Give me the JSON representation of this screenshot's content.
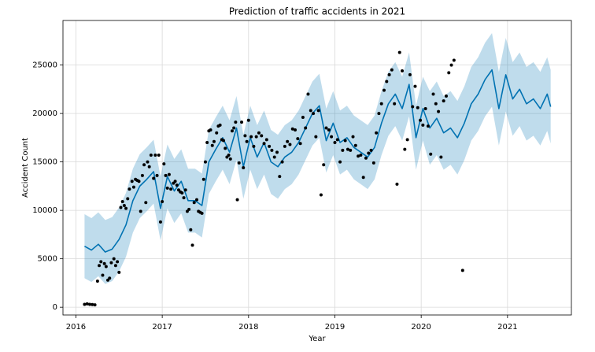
{
  "chart_data": {
    "type": "forecast",
    "title": "Prediction of traffic accidents in 2021",
    "x_label": "Year",
    "y_label": "Accident Count",
    "xlim": [
      2015.85,
      2021.74
    ],
    "ylim": [
      -800,
      29600
    ],
    "xticks": [
      2016,
      2017,
      2018,
      2019,
      2020,
      2021
    ],
    "yticks": [
      0,
      5000,
      10000,
      15000,
      20000,
      25000
    ],
    "grid": true,
    "points": {
      "color": "#000000",
      "x": [
        2016.1,
        2016.13,
        2016.16,
        2016.19,
        2016.22,
        2016.25,
        2016.27,
        2016.29,
        2016.31,
        2016.33,
        2016.35,
        2016.37,
        2016.39,
        2016.41,
        2016.44,
        2016.46,
        2016.48,
        2016.5,
        2016.52,
        2016.54,
        2016.56,
        2016.58,
        2016.6,
        2016.62,
        2016.65,
        2016.67,
        2016.69,
        2016.71,
        2016.73,
        2016.75,
        2016.77,
        2016.79,
        2016.81,
        2016.83,
        2016.85,
        2016.87,
        2016.9,
        2016.92,
        2016.94,
        2016.96,
        2016.98,
        2017.0,
        2017.02,
        2017.04,
        2017.06,
        2017.08,
        2017.1,
        2017.13,
        2017.15,
        2017.17,
        2017.19,
        2017.21,
        2017.23,
        2017.25,
        2017.27,
        2017.29,
        2017.31,
        2017.33,
        2017.35,
        2017.37,
        2017.4,
        2017.42,
        2017.44,
        2017.46,
        2017.48,
        2017.5,
        2017.52,
        2017.54,
        2017.56,
        2017.58,
        2017.6,
        2017.63,
        2017.65,
        2017.67,
        2017.69,
        2017.71,
        2017.73,
        2017.75,
        2017.77,
        2017.79,
        2017.81,
        2017.83,
        2017.85,
        2017.87,
        2017.89,
        2017.92,
        2017.94,
        2017.96,
        2017.98,
        2018.0,
        2018.03,
        2018.06,
        2018.09,
        2018.12,
        2018.15,
        2018.18,
        2018.21,
        2018.24,
        2018.27,
        2018.3,
        2018.33,
        2018.36,
        2018.39,
        2018.42,
        2018.45,
        2018.48,
        2018.51,
        2018.54,
        2018.57,
        2018.6,
        2018.63,
        2018.66,
        2018.69,
        2018.72,
        2018.75,
        2018.78,
        2018.81,
        2018.84,
        2018.87,
        2018.9,
        2018.93,
        2018.96,
        2019.0,
        2019.03,
        2019.06,
        2019.09,
        2019.12,
        2019.15,
        2019.18,
        2019.21,
        2019.24,
        2019.27,
        2019.3,
        2019.33,
        2019.36,
        2019.39,
        2019.42,
        2019.45,
        2019.48,
        2019.51,
        2019.54,
        2019.57,
        2019.6,
        2019.63,
        2019.66,
        2019.69,
        2019.72,
        2019.75,
        2019.78,
        2019.81,
        2019.84,
        2019.87,
        2019.9,
        2019.93,
        2019.96,
        2019.99,
        2020.02,
        2020.05,
        2020.08,
        2020.11,
        2020.14,
        2020.17,
        2020.2,
        2020.23,
        2020.26,
        2020.29,
        2020.32,
        2020.35,
        2020.38,
        2020.48
      ],
      "values": [
        300,
        350,
        300,
        280,
        250,
        2700,
        4300,
        4700,
        3300,
        4500,
        4200,
        2800,
        3000,
        4600,
        5000,
        4300,
        4700,
        3600,
        10300,
        10900,
        10500,
        10200,
        11200,
        12200,
        13000,
        12400,
        13200,
        13100,
        13000,
        9900,
        13600,
        14700,
        10800,
        15000,
        14500,
        15700,
        13300,
        15700,
        13600,
        15700,
        8800,
        10900,
        14800,
        13600,
        12300,
        13700,
        12200,
        12800,
        13000,
        12600,
        12100,
        11900,
        11800,
        11300,
        12100,
        9900,
        10100,
        8000,
        6400,
        10800,
        11100,
        9900,
        9800,
        9700,
        13200,
        15000,
        17000,
        18200,
        18300,
        16700,
        17100,
        18000,
        18700,
        18800,
        17300,
        17200,
        16400,
        15500,
        15700,
        15300,
        18200,
        18500,
        19100,
        11100,
        14900,
        19100,
        14400,
        17700,
        17100,
        19300,
        17600,
        16600,
        17600,
        18000,
        17700,
        16900,
        17300,
        16600,
        16200,
        15500,
        16000,
        13500,
        15000,
        16600,
        17100,
        16800,
        18400,
        18300,
        17400,
        16900,
        19600,
        18500,
        22000,
        20300,
        20000,
        17600,
        20300,
        11600,
        14700,
        18500,
        18300,
        17600,
        17000,
        17300,
        15000,
        16200,
        17200,
        16300,
        16200,
        17600,
        16700,
        15600,
        15700,
        13400,
        15400,
        15900,
        16200,
        14900,
        18000,
        20000,
        21000,
        22400,
        23300,
        24000,
        24500,
        21000,
        12700,
        26300,
        24400,
        16300,
        17300,
        24000,
        20700,
        22800,
        20600,
        19300,
        18800,
        20500,
        18700,
        15800,
        22000,
        21000,
        20200,
        15500,
        21300,
        21800,
        24200,
        25000,
        25500,
        3800
      ]
    },
    "forecast": {
      "color": "#0072b2",
      "band_color": "#0072b2",
      "x": [
        2016.1,
        2016.18,
        2016.26,
        2016.34,
        2016.42,
        2016.5,
        2016.58,
        2016.66,
        2016.74,
        2016.82,
        2016.9,
        2016.98,
        2017.06,
        2017.14,
        2017.22,
        2017.3,
        2017.38,
        2017.46,
        2017.54,
        2017.62,
        2017.7,
        2017.78,
        2017.86,
        2017.94,
        2018.02,
        2018.1,
        2018.18,
        2018.26,
        2018.34,
        2018.42,
        2018.5,
        2018.58,
        2018.66,
        2018.74,
        2018.82,
        2018.9,
        2018.98,
        2019.06,
        2019.14,
        2019.22,
        2019.3,
        2019.38,
        2019.46,
        2019.54,
        2019.62,
        2019.7,
        2019.78,
        2019.86,
        2019.94,
        2020.02,
        2020.1,
        2020.18,
        2020.26,
        2020.34,
        2020.42,
        2020.5,
        2020.58,
        2020.66,
        2020.74,
        2020.82,
        2020.9,
        2020.98,
        2021.06,
        2021.14,
        2021.22,
        2021.3,
        2021.38,
        2021.46,
        2021.5
      ],
      "values": [
        6300,
        5900,
        6500,
        5700,
        6000,
        7000,
        8500,
        11000,
        12500,
        13200,
        14000,
        10200,
        13500,
        12000,
        13000,
        11000,
        11000,
        10500,
        15000,
        16300,
        17500,
        16000,
        18500,
        14500,
        17500,
        15500,
        17000,
        15000,
        14500,
        15500,
        16000,
        17000,
        18500,
        20000,
        20800,
        17200,
        19000,
        17000,
        17500,
        16500,
        16000,
        15500,
        16500,
        19000,
        21000,
        22000,
        20500,
        23000,
        17500,
        20500,
        18500,
        19500,
        18000,
        18500,
        17500,
        19000,
        21000,
        22000,
        23500,
        24500,
        20500,
        24000,
        21500,
        22500,
        21000,
        21500,
        20500,
        22000,
        20700
      ],
      "lower": [
        3000,
        2600,
        3200,
        2400,
        2700,
        3700,
        5200,
        7700,
        9200,
        9900,
        10700,
        6900,
        10200,
        8700,
        9700,
        7700,
        7700,
        7200,
        11700,
        13000,
        14200,
        12700,
        15200,
        11200,
        14200,
        12200,
        13700,
        11700,
        11200,
        12200,
        12700,
        13700,
        15200,
        16700,
        17500,
        13900,
        15700,
        13700,
        14200,
        13200,
        12700,
        12200,
        13200,
        15700,
        17700,
        18700,
        17200,
        19700,
        14200,
        17200,
        14700,
        15700,
        14200,
        14700,
        13700,
        15200,
        17200,
        18200,
        19700,
        20700,
        16700,
        20200,
        17700,
        18700,
        17200,
        17700,
        16700,
        18200,
        16900
      ],
      "upper": [
        9600,
        9200,
        9800,
        9000,
        9300,
        10300,
        11800,
        14300,
        15800,
        16500,
        17300,
        13500,
        16800,
        15300,
        16300,
        14300,
        14300,
        13800,
        18300,
        19600,
        20800,
        19300,
        21800,
        17800,
        20800,
        18800,
        20300,
        18300,
        17800,
        18800,
        19300,
        20300,
        21800,
        23300,
        24100,
        20500,
        22300,
        20300,
        20800,
        19800,
        19300,
        18800,
        19800,
        22300,
        24300,
        25300,
        23800,
        26300,
        20800,
        23800,
        22300,
        23300,
        21800,
        22300,
        21300,
        22800,
        24800,
        25800,
        27300,
        28300,
        24300,
        27800,
        25300,
        26300,
        24800,
        25300,
        24300,
        25800,
        24500
      ]
    }
  }
}
